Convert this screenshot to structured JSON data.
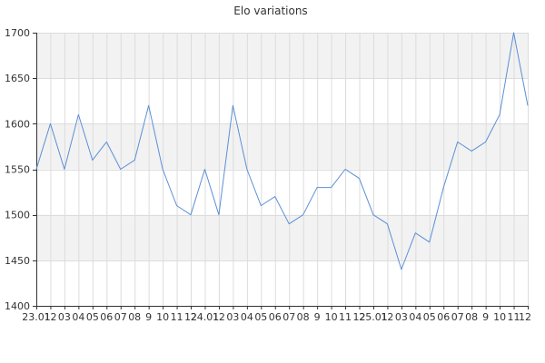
{
  "chart_data": {
    "type": "line",
    "title": "Elo variations",
    "xlabel": "",
    "ylabel": "",
    "ylim": [
      1400,
      1700
    ],
    "y_ticks": [
      1400,
      1450,
      1500,
      1550,
      1600,
      1650,
      1700
    ],
    "grid": true,
    "alternating_bands": true,
    "series_color": "#5b8fd6",
    "band_color": "#f2f2f2",
    "grid_color": "#dcdcdc",
    "axis_color": "#333333",
    "x_tick_labels": [
      "23.01",
      "12",
      "03",
      "04",
      "05",
      "06",
      "07",
      "08",
      "9",
      "10",
      "11",
      "12",
      "24.01",
      "12",
      "03",
      "04",
      "05",
      "06",
      "07",
      "08",
      "9",
      "10",
      "11",
      "12",
      "25.01",
      "12",
      "03",
      "04",
      "05",
      "06",
      "07",
      "08",
      "9",
      "10",
      "11",
      "12"
    ],
    "series": [
      {
        "values": [
          1550,
          1600,
          1550,
          1610,
          1560,
          1580,
          1550,
          1560,
          1620,
          1550,
          1510,
          1500,
          1550,
          1500,
          1620,
          1550,
          1510,
          1520,
          1490,
          1500,
          1530,
          1530,
          1550,
          1540,
          1500,
          1490,
          1440,
          1480,
          1470,
          1530,
          1580,
          1570,
          1580,
          1610,
          1700,
          1620
        ]
      }
    ]
  }
}
